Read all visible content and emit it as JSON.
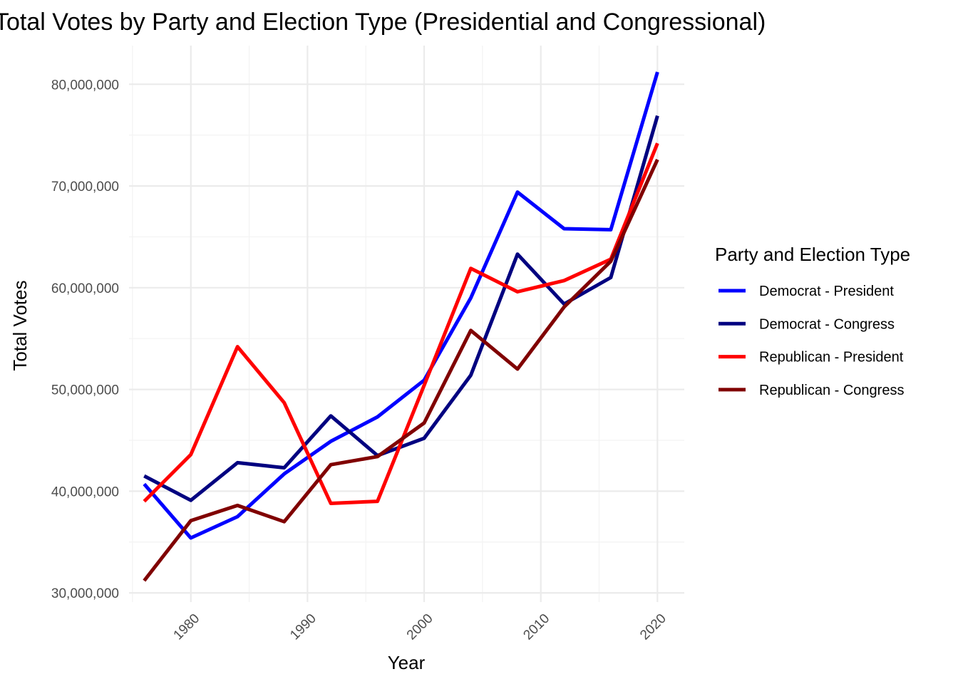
{
  "chart_data": {
    "type": "line",
    "title": "Total Votes by Party and Election Type (Presidential and Congressional)",
    "xlabel": "Year",
    "ylabel": "Total Votes",
    "xlim": [
      1974.7,
      2022.3
    ],
    "ylim": [
      29100000,
      83800000
    ],
    "x_ticks": [
      1980,
      1990,
      2000,
      2010,
      2020
    ],
    "y_ticks": [
      30000000,
      40000000,
      50000000,
      60000000,
      70000000,
      80000000
    ],
    "y_tick_labels": [
      "30,000,000",
      "40,000,000",
      "50,000,000",
      "60,000,000",
      "70,000,000",
      "80,000,000"
    ],
    "grid": true,
    "legend": {
      "title": "Party and Election Type",
      "position": "right"
    },
    "x": [
      1976,
      1980,
      1984,
      1988,
      1992,
      1996,
      2000,
      2004,
      2008,
      2012,
      2016,
      2020
    ],
    "series": [
      {
        "name": "Democrat - President",
        "color": "#0000ff",
        "values": [
          40700000,
          35400000,
          37500000,
          41700000,
          44900000,
          47300000,
          50900000,
          59000000,
          69400000,
          65800000,
          65700000,
          81200000
        ]
      },
      {
        "name": "Democrat - Congress",
        "color": "#000080",
        "values": [
          41500000,
          39100000,
          42800000,
          42300000,
          47400000,
          43500000,
          45200000,
          51400000,
          63300000,
          58400000,
          61000000,
          76900000
        ]
      },
      {
        "name": "Republican - President",
        "color": "#ff0000",
        "values": [
          39000000,
          43600000,
          54200000,
          48700000,
          38800000,
          39000000,
          50400000,
          61900000,
          59600000,
          60700000,
          62800000,
          74200000
        ]
      },
      {
        "name": "Republican - Congress",
        "color": "#800000",
        "values": [
          31200000,
          37100000,
          38600000,
          37000000,
          42600000,
          43400000,
          46700000,
          55800000,
          52000000,
          58100000,
          62600000,
          72600000
        ]
      }
    ]
  }
}
